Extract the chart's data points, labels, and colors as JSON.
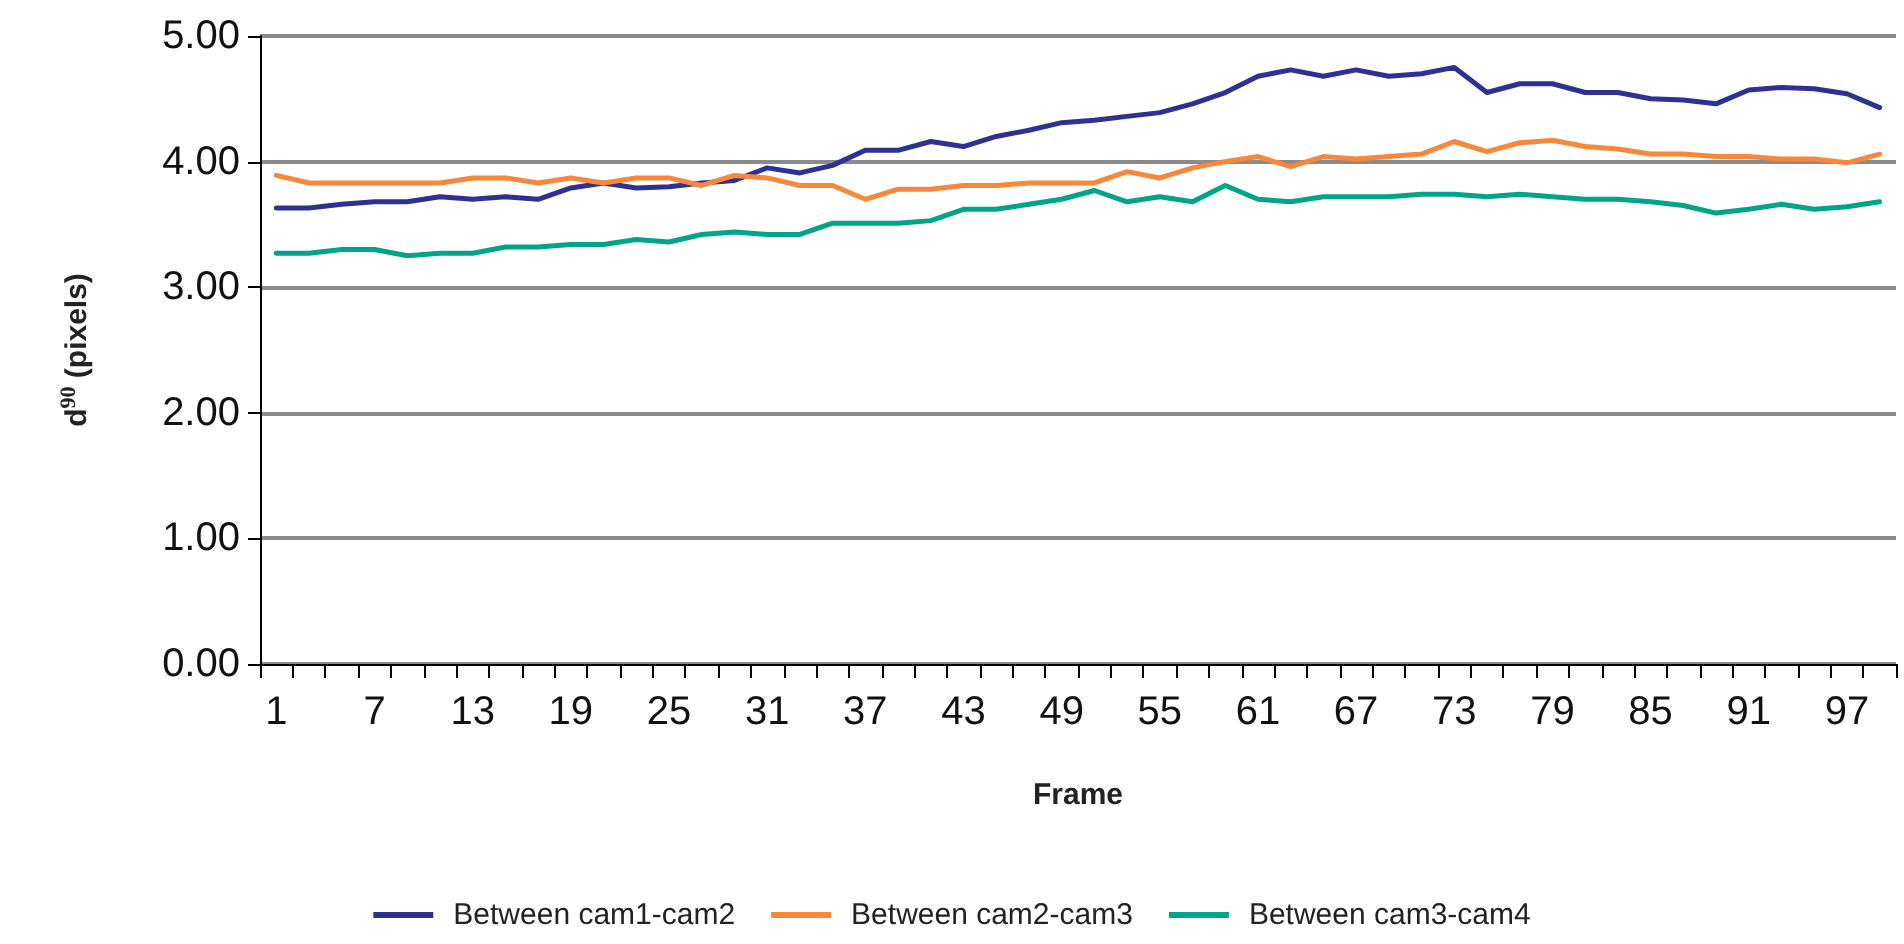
{
  "chart_data": {
    "type": "line",
    "xlabel": "Frame",
    "ylabel": "d$^{90}$ (pixels)",
    "categories": [
      "1",
      null,
      null,
      "7",
      null,
      null,
      "13",
      null,
      null,
      "19",
      null,
      null,
      "25",
      null,
      null,
      "31",
      null,
      null,
      "37",
      null,
      null,
      "43",
      null,
      null,
      "49",
      null,
      null,
      "55",
      null,
      null,
      "61",
      null,
      null,
      "67",
      null,
      null,
      "73",
      null,
      null,
      "79",
      null,
      null,
      "85",
      null,
      null,
      "91",
      null,
      null,
      "97",
      null
    ],
    "series": [
      {
        "name": "Between cam1-cam2",
        "color": "#2e3192",
        "values": [
          3.63,
          3.63,
          3.66,
          3.68,
          3.68,
          3.72,
          3.7,
          3.72,
          3.7,
          3.79,
          3.83,
          3.79,
          3.8,
          3.83,
          3.85,
          3.95,
          3.91,
          3.97,
          4.09,
          4.09,
          4.16,
          4.12,
          4.2,
          4.25,
          4.31,
          4.33,
          4.36,
          4.39,
          4.46,
          4.55,
          4.68,
          4.73,
          4.68,
          4.73,
          4.68,
          4.7,
          4.75,
          4.55,
          4.62,
          4.62,
          4.55,
          4.55,
          4.5,
          4.49,
          4.46,
          4.57,
          4.59,
          4.58,
          4.54,
          4.43
        ]
      },
      {
        "name": "Between cam2-cam3",
        "color": "#f7883b",
        "values": [
          3.89,
          3.83,
          3.83,
          3.83,
          3.83,
          3.83,
          3.87,
          3.87,
          3.83,
          3.87,
          3.83,
          3.87,
          3.87,
          3.81,
          3.89,
          3.87,
          3.81,
          3.81,
          3.7,
          3.78,
          3.78,
          3.81,
          3.81,
          3.83,
          3.83,
          3.83,
          3.92,
          3.87,
          3.95,
          4.0,
          4.04,
          3.96,
          4.04,
          4.02,
          4.04,
          4.06,
          4.16,
          4.08,
          4.15,
          4.17,
          4.12,
          4.1,
          4.06,
          4.06,
          4.04,
          4.04,
          4.02,
          4.02,
          3.99,
          4.06
        ]
      },
      {
        "name": "Between cam3-cam4",
        "color": "#00a488",
        "values": [
          3.27,
          3.27,
          3.3,
          3.3,
          3.25,
          3.27,
          3.27,
          3.32,
          3.32,
          3.34,
          3.34,
          3.38,
          3.36,
          3.42,
          3.44,
          3.42,
          3.42,
          3.51,
          3.51,
          3.51,
          3.53,
          3.62,
          3.62,
          3.66,
          3.7,
          3.77,
          3.68,
          3.72,
          3.68,
          3.81,
          3.7,
          3.68,
          3.72,
          3.72,
          3.72,
          3.74,
          3.74,
          3.72,
          3.74,
          3.72,
          3.7,
          3.7,
          3.68,
          3.65,
          3.59,
          3.62,
          3.66,
          3.62,
          3.64,
          3.68
        ]
      }
    ],
    "ylim": [
      0,
      5
    ],
    "yticks": [
      {
        "value": 0,
        "label": "0.00"
      },
      {
        "value": 1,
        "label": "1.00"
      },
      {
        "value": 2,
        "label": "2.00"
      },
      {
        "value": 3,
        "label": "3.00"
      },
      {
        "value": 4,
        "label": "4.00"
      },
      {
        "value": 5,
        "label": "5.00"
      }
    ],
    "grid": "y",
    "legend": "bottom",
    "marker": "none",
    "line_style": "solid"
  }
}
